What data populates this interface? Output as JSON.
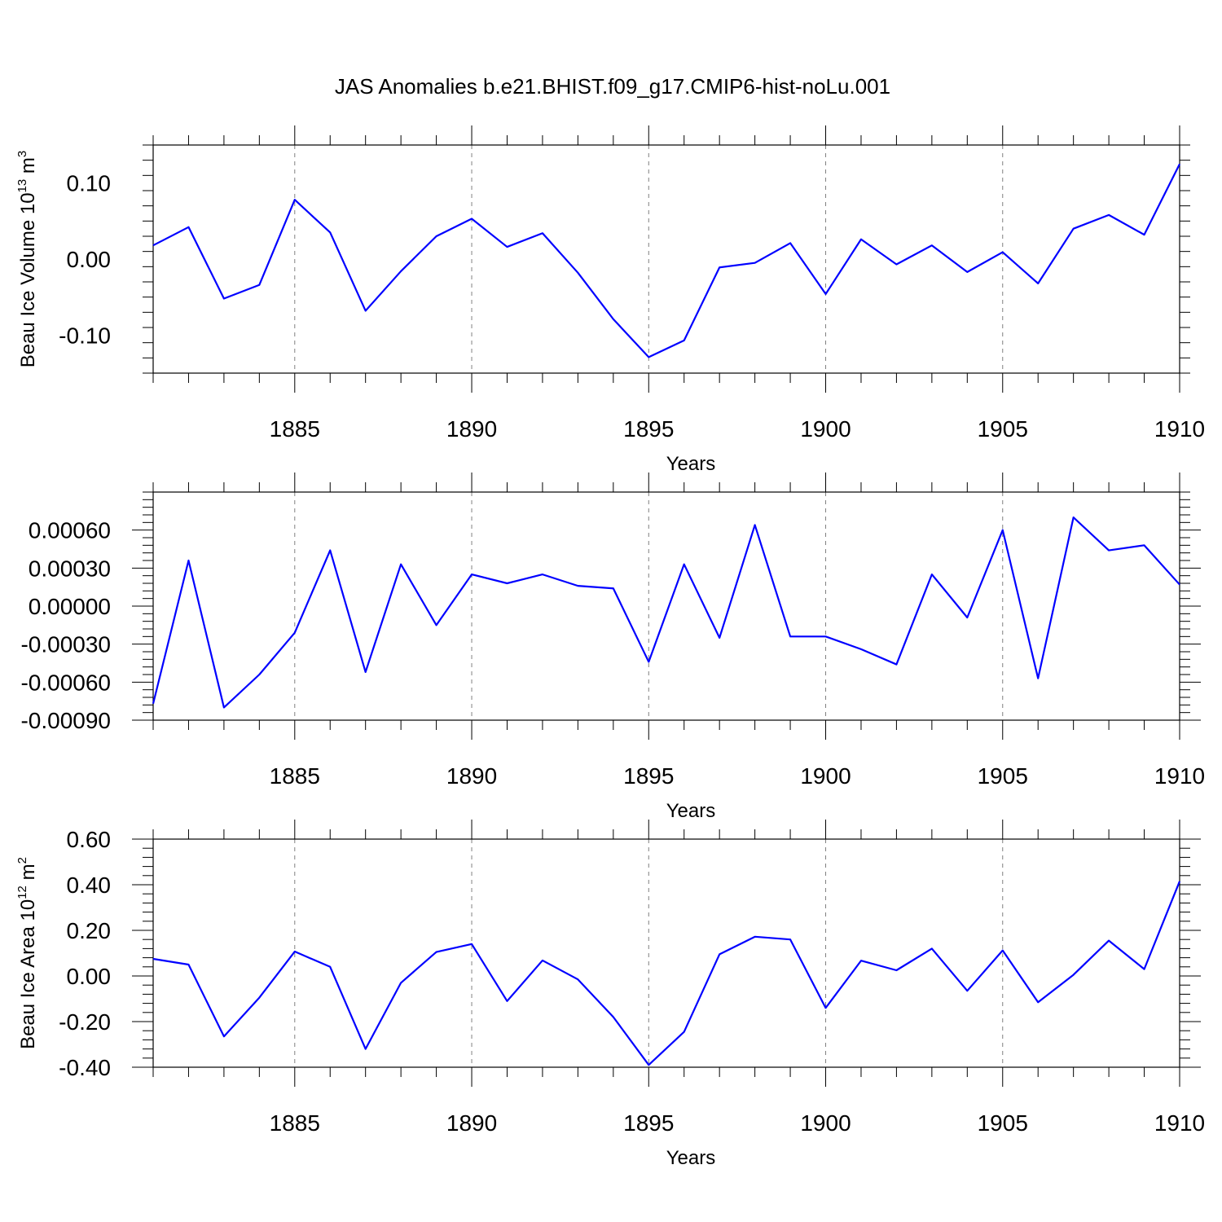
{
  "chart_data": {
    "title": "JAS Anomalies b.e21.BHIST.f09_g17.CMIP6-hist-noLu.001",
    "panels": [
      {
        "type": "line",
        "ylabel": "Beau Ice Volume 10",
        "ylabel_sup": "13",
        "ylabel_unit": "m",
        "ylabel_unit_sup": "3",
        "xlabel": "Years",
        "xlim": [
          1881,
          1910
        ],
        "ylim": [
          -0.15,
          0.15
        ],
        "yticks": [
          -0.1,
          0.0,
          0.1
        ],
        "ytick_labels": [
          "-0.10",
          "0.00",
          "0.10"
        ],
        "xticks": [
          1885,
          1890,
          1895,
          1900,
          1905,
          1910
        ],
        "xtick_labels": [
          "1885",
          "1890",
          "1895",
          "1900",
          "1905",
          "1910"
        ],
        "x": [
          1881,
          1882,
          1883,
          1884,
          1885,
          1886,
          1887,
          1888,
          1889,
          1890,
          1891,
          1892,
          1893,
          1894,
          1895,
          1896,
          1897,
          1898,
          1899,
          1900,
          1901,
          1902,
          1903,
          1904,
          1905,
          1906,
          1907,
          1908,
          1909,
          1910
        ],
        "values": [
          0.018,
          0.042,
          -0.052,
          -0.034,
          0.078,
          0.035,
          -0.068,
          -0.016,
          0.03,
          0.053,
          0.016,
          0.034,
          -0.018,
          -0.079,
          -0.129,
          -0.107,
          -0.011,
          -0.005,
          0.021,
          -0.046,
          0.026,
          -0.007,
          0.018,
          -0.017,
          0.009,
          -0.032,
          0.04,
          0.058,
          0.032,
          0.125
        ]
      },
      {
        "type": "line",
        "ylabel": "",
        "xlabel": "Years",
        "xlim": [
          1881,
          1910
        ],
        "ylim": [
          -0.0009,
          0.0009
        ],
        "yticks": [
          -0.0009,
          -0.0006,
          -0.0003,
          0.0,
          0.0003,
          0.0006
        ],
        "ytick_labels": [
          "-0.00090",
          "-0.00060",
          "-0.00030",
          "0.00000",
          "0.00030",
          "0.00060"
        ],
        "xticks": [
          1885,
          1890,
          1895,
          1900,
          1905,
          1910
        ],
        "xtick_labels": [
          "1885",
          "1890",
          "1895",
          "1900",
          "1905",
          "1910"
        ],
        "x": [
          1881,
          1882,
          1883,
          1884,
          1885,
          1886,
          1887,
          1888,
          1889,
          1890,
          1891,
          1892,
          1893,
          1894,
          1895,
          1896,
          1897,
          1898,
          1899,
          1900,
          1901,
          1902,
          1903,
          1904,
          1905,
          1906,
          1907,
          1908,
          1909,
          1910
        ],
        "values": [
          -0.00077,
          0.00036,
          -0.0008,
          -0.00054,
          -0.00021,
          0.00044,
          -0.00052,
          0.00033,
          -0.00015,
          0.00025,
          0.00018,
          0.00025,
          0.00016,
          0.00014,
          -0.00044,
          0.00033,
          -0.00025,
          0.00064,
          -0.00024,
          -0.00024,
          -0.00034,
          -0.00046,
          0.00025,
          -9e-05,
          0.0006,
          -0.00057,
          0.0007,
          0.00044,
          0.00048,
          0.00017
        ]
      },
      {
        "type": "line",
        "ylabel": "Beau Ice Area 10",
        "ylabel_sup": "12",
        "ylabel_unit": "m",
        "ylabel_unit_sup": "2",
        "xlabel": "Years",
        "xlim": [
          1881,
          1910
        ],
        "ylim": [
          -0.4,
          0.6
        ],
        "yticks": [
          -0.4,
          -0.2,
          0.0,
          0.2,
          0.4,
          0.6
        ],
        "ytick_labels": [
          "-0.40",
          "-0.20",
          "0.00",
          "0.20",
          "0.40",
          "0.60"
        ],
        "xticks": [
          1885,
          1890,
          1895,
          1900,
          1905,
          1910
        ],
        "xtick_labels": [
          "1885",
          "1890",
          "1895",
          "1900",
          "1905",
          "1910"
        ],
        "x": [
          1881,
          1882,
          1883,
          1884,
          1885,
          1886,
          1887,
          1888,
          1889,
          1890,
          1891,
          1892,
          1893,
          1894,
          1895,
          1896,
          1897,
          1898,
          1899,
          1900,
          1901,
          1902,
          1903,
          1904,
          1905,
          1906,
          1907,
          1908,
          1909,
          1910
        ],
        "values": [
          0.075,
          0.05,
          -0.265,
          -0.095,
          0.107,
          0.04,
          -0.32,
          -0.03,
          0.105,
          0.14,
          -0.11,
          0.068,
          -0.015,
          -0.18,
          -0.39,
          -0.245,
          0.095,
          0.172,
          0.16,
          -0.14,
          0.067,
          0.025,
          0.12,
          -0.065,
          0.112,
          -0.115,
          0.005,
          0.155,
          0.03,
          0.415
        ]
      }
    ]
  },
  "colors": {
    "series": "#0000ff",
    "grid": "#808080",
    "frame": "#000000"
  }
}
